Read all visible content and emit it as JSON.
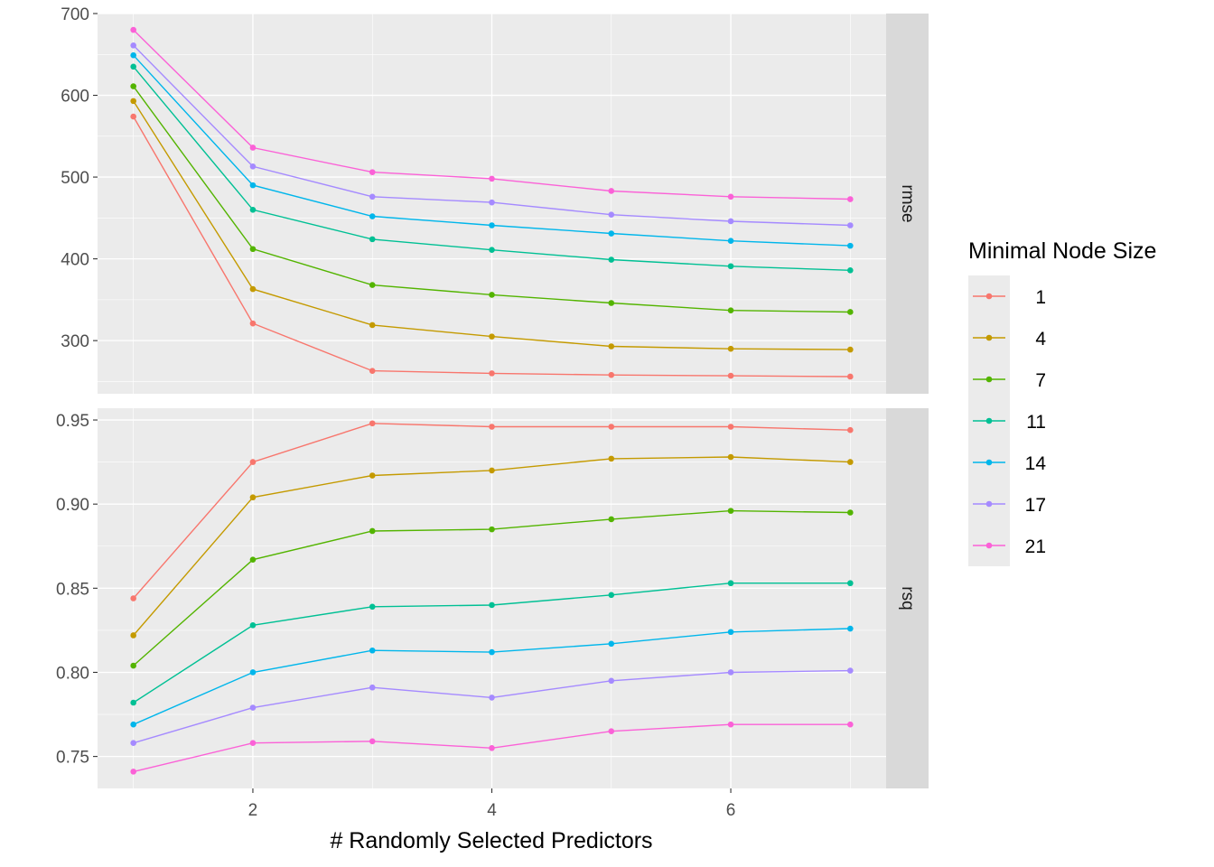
{
  "chart_data": {
    "type": "line",
    "xlabel": "# Randomly Selected Predictors",
    "x": [
      1,
      2,
      3,
      4,
      5,
      6,
      7
    ],
    "x_ticks": [
      2,
      4,
      6
    ],
    "xlim": [
      0.7,
      7.3
    ],
    "legend": {
      "title": "Minimal Node Size",
      "position": "right",
      "entries": [
        "1",
        "4",
        "7",
        "11",
        "14",
        "17",
        "21"
      ]
    },
    "colors": [
      "#F8766D",
      "#C49A00",
      "#53B400",
      "#00C094",
      "#00B6EB",
      "#A58AFF",
      "#FB61D7"
    ],
    "grid": true,
    "panels": [
      {
        "strip_label": "rmse",
        "ylim": [
          235,
          700
        ],
        "y_ticks": [
          300,
          400,
          500,
          600,
          700
        ],
        "series": [
          {
            "name": "1",
            "values": [
              574,
              321,
              263,
              260,
              258,
              257,
              256
            ]
          },
          {
            "name": "4",
            "values": [
              593,
              363,
              319,
              305,
              293,
              290,
              289
            ]
          },
          {
            "name": "7",
            "values": [
              611,
              412,
              368,
              356,
              346,
              337,
              335
            ]
          },
          {
            "name": "11",
            "values": [
              635,
              460,
              424,
              411,
              399,
              391,
              386
            ]
          },
          {
            "name": "14",
            "values": [
              649,
              490,
              452,
              441,
              431,
              422,
              416
            ]
          },
          {
            "name": "17",
            "values": [
              661,
              513,
              476,
              469,
              454,
              446,
              441
            ]
          },
          {
            "name": "21",
            "values": [
              680,
              536,
              506,
              498,
              483,
              476,
              473
            ]
          }
        ]
      },
      {
        "strip_label": "rsq",
        "ylim": [
          0.731,
          0.957
        ],
        "y_ticks": [
          0.75,
          0.8,
          0.85,
          0.9,
          0.95
        ],
        "y_tick_labels": [
          "0.75",
          "0.80",
          "0.85",
          "0.90",
          "0.95"
        ],
        "series": [
          {
            "name": "1",
            "values": [
              0.844,
              0.925,
              0.948,
              0.946,
              0.946,
              0.946,
              0.944
            ]
          },
          {
            "name": "4",
            "values": [
              0.822,
              0.904,
              0.917,
              0.92,
              0.927,
              0.928,
              0.925
            ]
          },
          {
            "name": "7",
            "values": [
              0.804,
              0.867,
              0.884,
              0.885,
              0.891,
              0.896,
              0.895
            ]
          },
          {
            "name": "11",
            "values": [
              0.782,
              0.828,
              0.839,
              0.84,
              0.846,
              0.853,
              0.853
            ]
          },
          {
            "name": "14",
            "values": [
              0.769,
              0.8,
              0.813,
              0.812,
              0.817,
              0.824,
              0.826
            ]
          },
          {
            "name": "17",
            "values": [
              0.758,
              0.779,
              0.791,
              0.785,
              0.795,
              0.8,
              0.801
            ]
          },
          {
            "name": "21",
            "values": [
              0.741,
              0.758,
              0.759,
              0.755,
              0.765,
              0.769,
              0.769
            ]
          }
        ]
      }
    ]
  }
}
